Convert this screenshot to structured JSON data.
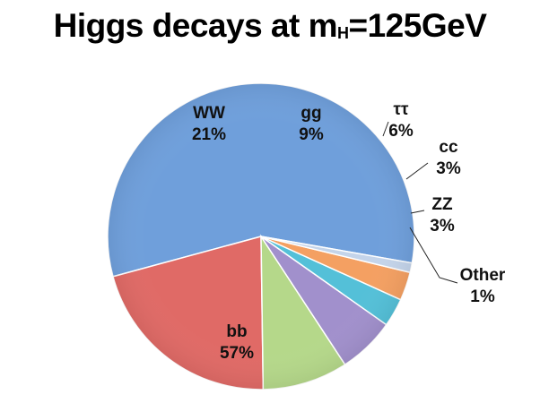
{
  "title": {
    "prefix": "Higgs decays at m",
    "subscript": "H",
    "suffix": "=125GeV"
  },
  "chart_data": {
    "type": "pie",
    "title": "Higgs decays at mH=125GeV",
    "slices": [
      {
        "label": "bb",
        "value": 57,
        "percent_label": "57%",
        "color": "#6f9fdb"
      },
      {
        "label": "WW",
        "value": 21,
        "percent_label": "21%",
        "color": "#e06a66"
      },
      {
        "label": "gg",
        "value": 9,
        "percent_label": "9%",
        "color": "#b5d88a"
      },
      {
        "label": "ττ",
        "value": 6,
        "percent_label": "6%",
        "color": "#a190cc"
      },
      {
        "label": "cc",
        "value": 3,
        "percent_label": "3%",
        "color": "#54c0d8"
      },
      {
        "label": "ZZ",
        "value": 3,
        "percent_label": "3%",
        "color": "#f4a062"
      },
      {
        "label": "Other",
        "value": 1,
        "percent_label": "1%",
        "color": "#c4d4ea"
      }
    ]
  }
}
